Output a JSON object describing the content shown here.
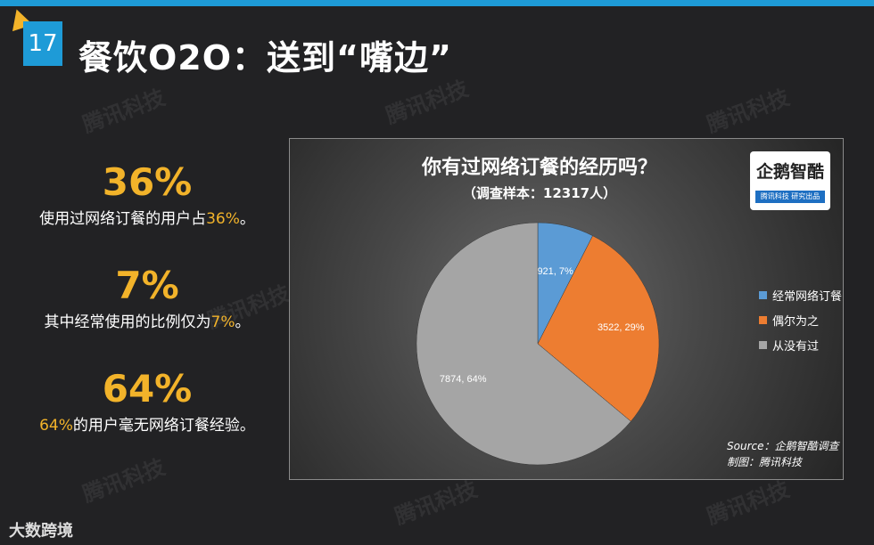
{
  "header": {
    "page_number": "17",
    "title": "餐饮O2O：送到“嘴边”"
  },
  "stats": [
    {
      "big": "36%",
      "pre": "使用过网络订餐的用户占",
      "hl": "36%",
      "post": "。"
    },
    {
      "big": "7%",
      "pre": "其中经常使用的比例仅为",
      "hl": "7%",
      "post": "。"
    },
    {
      "big": "64%",
      "pre": "",
      "hl": "64%",
      "post": "的用户毫无网络订餐经验。"
    }
  ],
  "chart_data": {
    "type": "pie",
    "title": "你有过网络订餐的经历吗？",
    "subtitle": "（调查样本：12317人）",
    "categories": [
      "经常网络订餐",
      "偶尔为之",
      "从没有过"
    ],
    "values": [
      921,
      3522,
      7874
    ],
    "percents": [
      7,
      29,
      64
    ],
    "data_labels": [
      "921, 7%",
      "3522, 29%",
      "7874, 64%"
    ],
    "colors": [
      "#5b9bd5",
      "#ed7d31",
      "#a5a5a5"
    ],
    "legend_position": "right"
  },
  "logo": {
    "main": "企鹅智酷",
    "sub": "腾讯科技  研究出品"
  },
  "source": "Source：企鹅智酷调查",
  "credit": "制图：腾讯科技",
  "watermark_text": "腾讯科技",
  "footer": {
    "brand": "大数跨境"
  }
}
